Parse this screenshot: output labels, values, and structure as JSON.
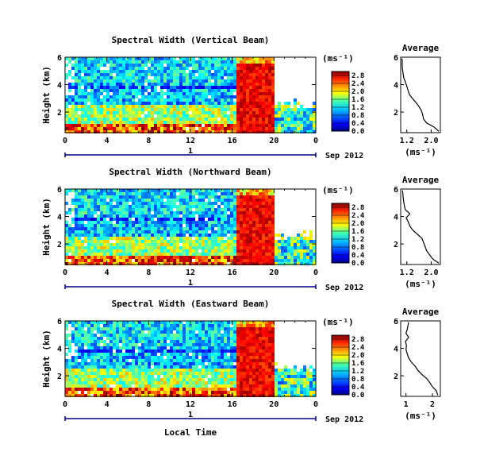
{
  "chart_data": [
    {
      "type": "heatmap",
      "title": "Spectral Width (Vertical Beam)",
      "ylabel": "Height (km)",
      "x_ticks": [
        "0",
        "4",
        "8",
        "12",
        "16",
        "20",
        "0"
      ],
      "y_ticks": [
        "2",
        "4",
        "6"
      ],
      "date_marker": "1",
      "date_label": "Sep 2012",
      "xlim": [
        0,
        24
      ],
      "ylim": [
        0.5,
        6
      ],
      "colorbar": {
        "unit": "(ms⁻¹)",
        "ticks": [
          "0.0",
          "0.4",
          "0.8",
          "1.2",
          "1.6",
          "2.0",
          "2.4",
          "2.8"
        ],
        "range": [
          0.0,
          3.0
        ]
      },
      "average": {
        "title": "Average",
        "xlabel": "(ms⁻¹)",
        "x_ticks": [
          "1.2",
          "2.0"
        ],
        "y_ticks": [
          "2",
          "4",
          "6"
        ],
        "xlim": [
          1.0,
          2.3
        ],
        "profile": [
          [
            0.6,
            2.25
          ],
          [
            0.9,
            2.1
          ],
          [
            1.2,
            1.85
          ],
          [
            1.5,
            1.75
          ],
          [
            1.8,
            1.72
          ],
          [
            2.1,
            1.68
          ],
          [
            2.4,
            1.6
          ],
          [
            2.7,
            1.5
          ],
          [
            3.0,
            1.38
          ],
          [
            3.3,
            1.28
          ],
          [
            3.6,
            1.24
          ],
          [
            3.9,
            1.2
          ],
          [
            4.2,
            1.15
          ],
          [
            4.5,
            1.1
          ],
          [
            4.8,
            1.08
          ],
          [
            5.1,
            1.06
          ],
          [
            5.4,
            1.05
          ],
          [
            5.7,
            1.05
          ],
          [
            5.9,
            1.04
          ]
        ]
      }
    },
    {
      "type": "heatmap",
      "title": "Spectral Width (Northward Beam)",
      "ylabel": "Height (km)",
      "x_ticks": [
        "0",
        "4",
        "8",
        "12",
        "16",
        "20",
        "0"
      ],
      "y_ticks": [
        "2",
        "4",
        "6"
      ],
      "date_marker": "1",
      "date_label": "Sep 2012",
      "xlim": [
        0,
        24
      ],
      "ylim": [
        0.5,
        6
      ],
      "colorbar": {
        "unit": "(ms⁻¹)",
        "ticks": [
          "0.0",
          "0.4",
          "0.8",
          "1.2",
          "1.6",
          "2.0",
          "2.4",
          "2.8"
        ],
        "range": [
          0.0,
          3.0
        ]
      },
      "average": {
        "title": "Average",
        "xlabel": "(ms⁻¹)",
        "x_ticks": [
          "1.2",
          "2.0"
        ],
        "y_ticks": [
          "2",
          "4",
          "6"
        ],
        "xlim": [
          1.0,
          2.3
        ],
        "profile": [
          [
            0.6,
            2.25
          ],
          [
            0.9,
            2.05
          ],
          [
            1.2,
            1.95
          ],
          [
            1.5,
            1.85
          ],
          [
            1.8,
            1.8
          ],
          [
            2.1,
            1.75
          ],
          [
            2.4,
            1.7
          ],
          [
            2.7,
            1.55
          ],
          [
            3.0,
            1.4
          ],
          [
            3.3,
            1.3
          ],
          [
            3.6,
            1.25
          ],
          [
            3.9,
            1.18
          ],
          [
            4.2,
            1.3
          ],
          [
            4.5,
            1.15
          ],
          [
            4.8,
            1.12
          ],
          [
            5.1,
            1.1
          ],
          [
            5.4,
            1.08
          ],
          [
            5.7,
            1.07
          ],
          [
            5.9,
            1.06
          ]
        ]
      }
    },
    {
      "type": "heatmap",
      "title": "Spectral Width (Eastward Beam)",
      "ylabel": "Height (km)",
      "xlabel": "Local Time",
      "x_ticks": [
        "0",
        "4",
        "8",
        "12",
        "16",
        "20",
        "0"
      ],
      "y_ticks": [
        "2",
        "4",
        "6"
      ],
      "date_marker": "1",
      "date_label": "Sep 2012",
      "xlim": [
        0,
        24
      ],
      "ylim": [
        0.5,
        6
      ],
      "colorbar": {
        "unit": "(ms⁻¹)",
        "ticks": [
          "0.0",
          "0.4",
          "0.8",
          "1.2",
          "1.6",
          "2.0",
          "2.4",
          "2.8"
        ],
        "range": [
          0.0,
          3.0
        ]
      },
      "average": {
        "title": "Average",
        "xlabel": "(ms⁻¹)",
        "x_ticks": [
          "1",
          "2"
        ],
        "y_ticks": [
          "2",
          "4",
          "6"
        ],
        "xlim": [
          0.8,
          2.3
        ],
        "profile": [
          [
            0.6,
            2.2
          ],
          [
            0.9,
            2.15
          ],
          [
            1.2,
            2.0
          ],
          [
            1.5,
            1.9
          ],
          [
            1.8,
            1.78
          ],
          [
            2.1,
            1.6
          ],
          [
            2.4,
            1.45
          ],
          [
            2.7,
            1.35
          ],
          [
            3.0,
            1.2
          ],
          [
            3.3,
            1.1
          ],
          [
            3.6,
            1.05
          ],
          [
            3.9,
            1.0
          ],
          [
            4.2,
            1.02
          ],
          [
            4.5,
            0.98
          ],
          [
            4.8,
            1.1
          ],
          [
            5.1,
            1.0
          ],
          [
            5.4,
            1.05
          ],
          [
            5.7,
            1.08
          ],
          [
            5.9,
            1.1
          ]
        ]
      }
    }
  ]
}
